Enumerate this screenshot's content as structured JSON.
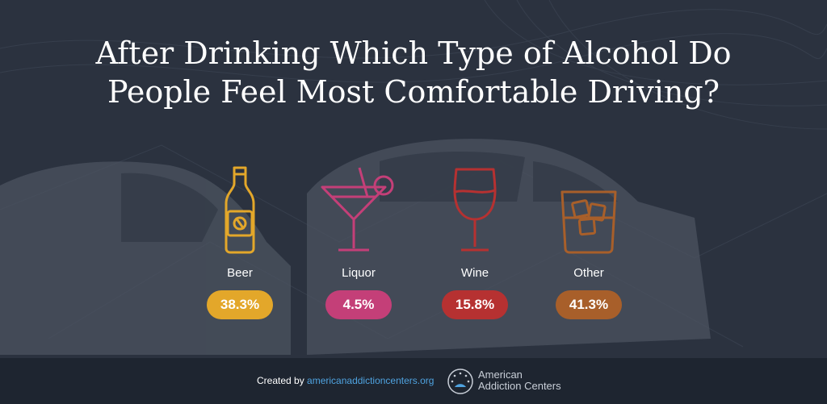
{
  "title_line1": "After Drinking Which Type of Alcohol Do",
  "title_line2": "People Feel Most Comfortable Driving?",
  "chart_data": {
    "type": "table",
    "title": "After Drinking Which Type of Alcohol Do People Feel Most Comfortable Driving?",
    "categories": [
      "Beer",
      "Liquor",
      "Wine",
      "Other"
    ],
    "values": [
      38.3,
      4.5,
      15.8,
      41.3
    ],
    "value_labels": [
      "38.3%",
      "4.5%",
      "15.8%",
      "41.3%"
    ],
    "colors": [
      "#e3a72a",
      "#c43f78",
      "#b63131",
      "#a85f2a"
    ],
    "icons": [
      "beer-bottle-icon",
      "cocktail-glass-icon",
      "wine-glass-icon",
      "whiskey-glass-icon"
    ]
  },
  "footer": {
    "created_by": "Created by ",
    "site": "americanaddictioncenters.org",
    "logo_line1": "American",
    "logo_line2": "Addiction Centers"
  }
}
